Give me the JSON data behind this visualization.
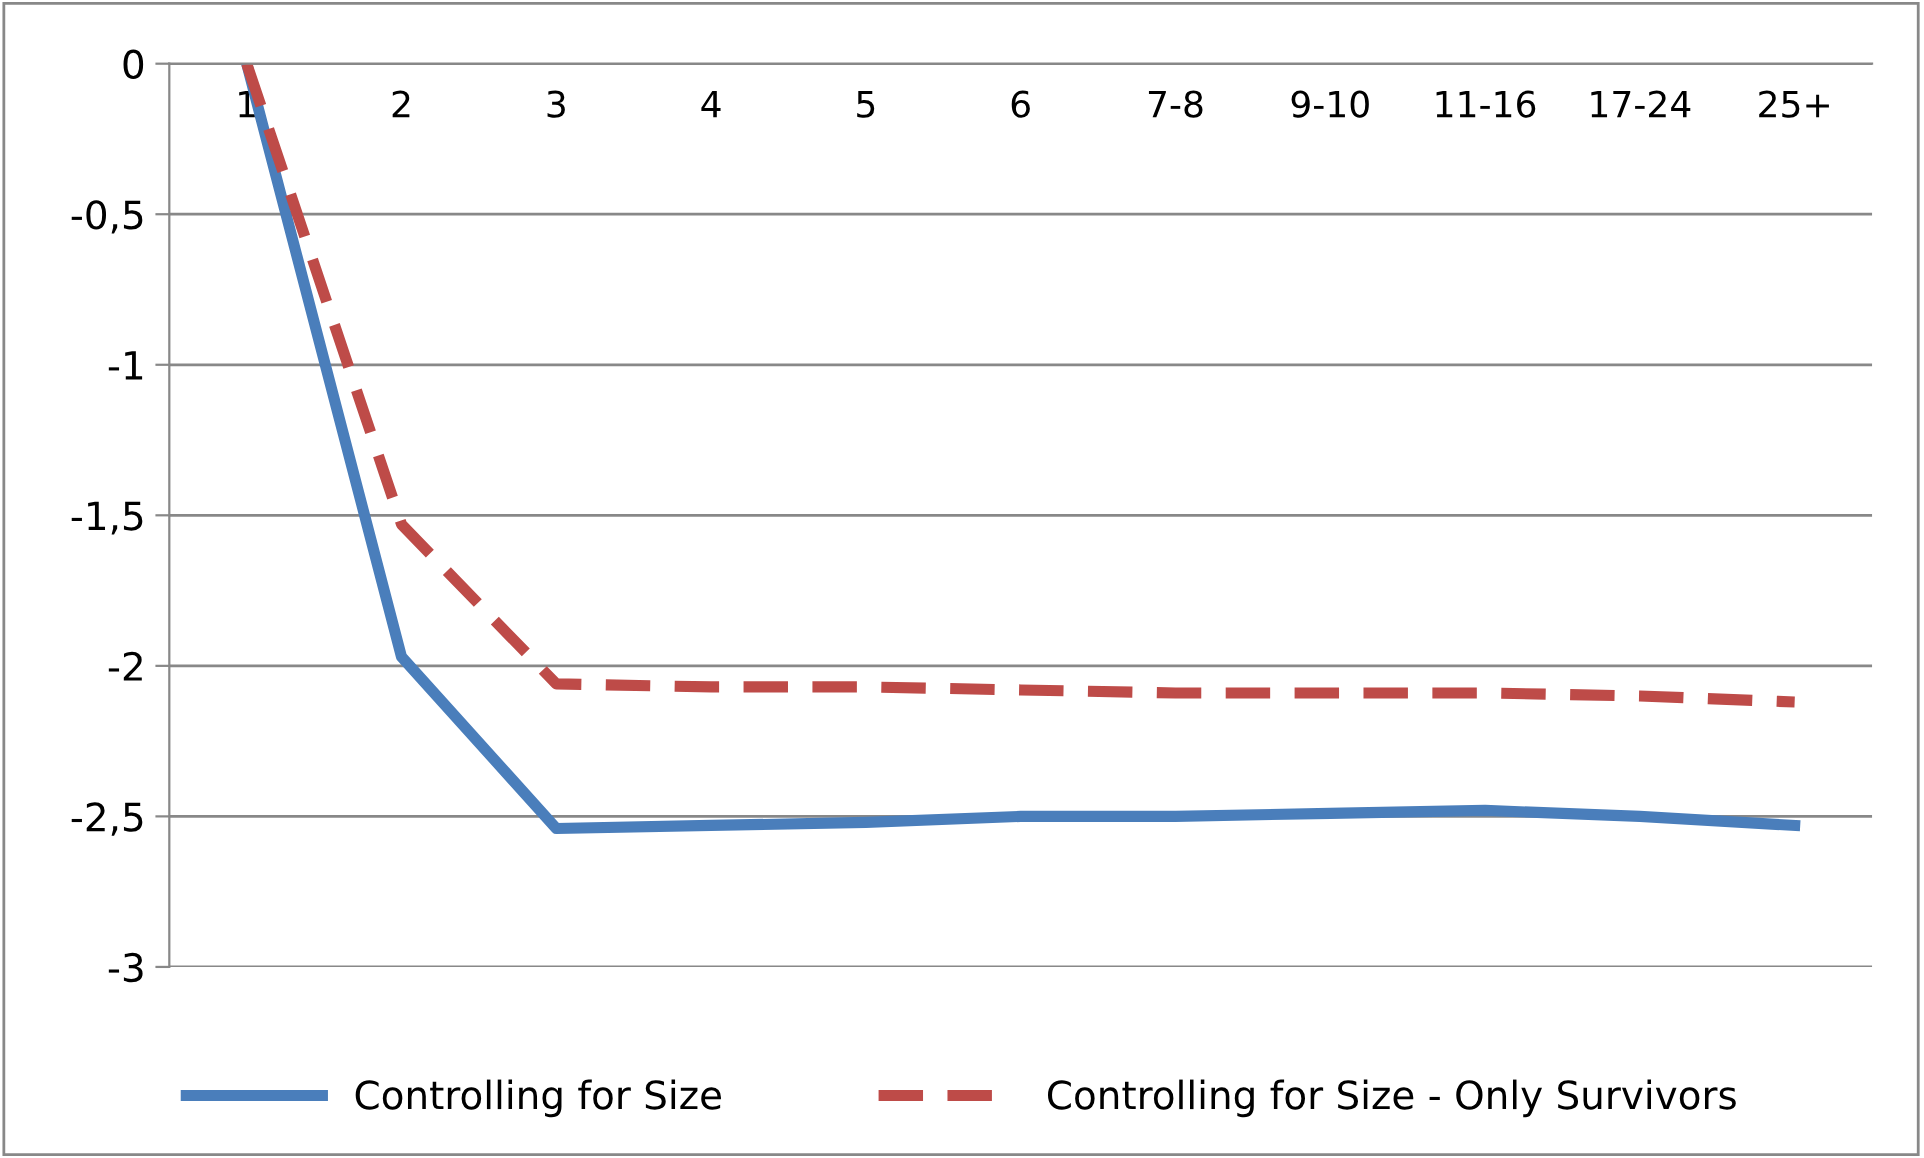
{
  "chart_data": {
    "type": "line",
    "categories": [
      "1",
      "2",
      "3",
      "4",
      "5",
      "6",
      "7-8",
      "9-10",
      "11-16",
      "17-24",
      "25+"
    ],
    "series": [
      {
        "name": "Controlling for Size",
        "color": "#4a7ebb",
        "line_style": "solid",
        "values": [
          0,
          -1.97,
          -2.54,
          -2.53,
          -2.52,
          -2.5,
          -2.5,
          -2.49,
          -2.48,
          -2.5,
          -2.53
        ]
      },
      {
        "name": "Controlling for Size - Only Survivors",
        "color": "#be4b48",
        "line_style": "dashed",
        "values": [
          0,
          -1.53,
          -2.06,
          -2.07,
          -2.07,
          -2.08,
          -2.09,
          -2.09,
          -2.09,
          -2.1,
          -2.12
        ]
      }
    ],
    "ylim": [
      -3,
      0
    ],
    "yticks": [
      {
        "value": 0,
        "label": "0"
      },
      {
        "value": -0.5,
        "label": "-0,5"
      },
      {
        "value": -1,
        "label": "-1"
      },
      {
        "value": -1.5,
        "label": "-1,5"
      },
      {
        "value": -2,
        "label": "-2"
      },
      {
        "value": -2.5,
        "label": "-2,5"
      },
      {
        "value": -3,
        "label": "-3"
      }
    ],
    "grid": "y",
    "legend": "bottom",
    "marker": "none"
  }
}
